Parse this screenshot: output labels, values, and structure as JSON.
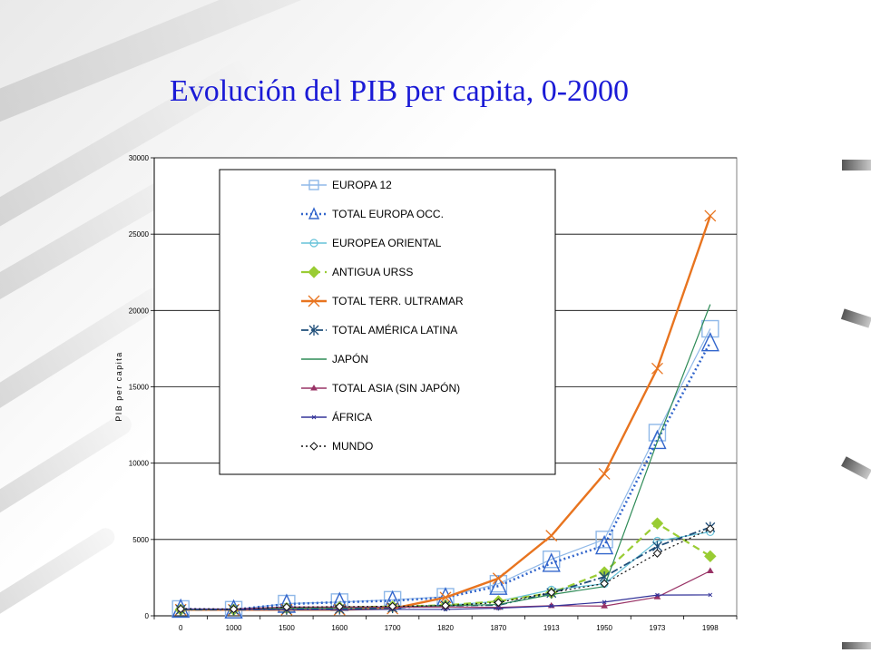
{
  "slide": {
    "title": "Evolución del PIB per capita, 0-2000"
  },
  "chart_data": {
    "type": "line",
    "title": "",
    "xlabel": "",
    "ylabel": "PIB per capita",
    "ylim": [
      0,
      30000
    ],
    "yticks": [
      0,
      5000,
      10000,
      15000,
      20000,
      25000,
      30000
    ],
    "categories": [
      "0",
      "1000",
      "1500",
      "1600",
      "1700",
      "1820",
      "1870",
      "1913",
      "1950",
      "1973",
      "1998"
    ],
    "grid": "horizontal major gridlines",
    "legend_position": "upper-left inside plot",
    "series": [
      {
        "name": "EUROPA 12",
        "color": "#8fb8e8",
        "marker": "square",
        "dash": "solid",
        "values": [
          450,
          400,
          800,
          900,
          1050,
          1250,
          2100,
          3700,
          5000,
          12000,
          18800
        ]
      },
      {
        "name": "TOTAL EUROPA OCC.",
        "color": "#3366cc",
        "marker": "triangle",
        "dash": "dotted",
        "values": [
          450,
          400,
          770,
          890,
          990,
          1200,
          1950,
          3450,
          4600,
          11500,
          17900
        ]
      },
      {
        "name": "EUROPEA ORIENTAL",
        "color": "#66c2d9",
        "marker": "circle",
        "dash": "solid",
        "values": [
          400,
          400,
          500,
          550,
          600,
          680,
          950,
          1700,
          2100,
          4900,
          5500
        ]
      },
      {
        "name": "ANTIGUA URSS",
        "color": "#99cc33",
        "marker": "diamond",
        "dash": "dashed",
        "values": [
          400,
          400,
          500,
          550,
          610,
          690,
          950,
          1500,
          2850,
          6050,
          3900
        ]
      },
      {
        "name": "TOTAL TERR. ULTRAMAR",
        "color": "#e8741f",
        "marker": "x",
        "dash": "solid",
        "values": [
          400,
          400,
          400,
          400,
          470,
          1200,
          2450,
          5250,
          9300,
          16200,
          26200
        ]
      },
      {
        "name": "TOTAL AMÉRICA LATINA",
        "color": "#1f4e79",
        "marker": "star",
        "dash": "dashdot",
        "values": [
          400,
          400,
          420,
          440,
          530,
          670,
          700,
          1500,
          2550,
          4550,
          5800
        ]
      },
      {
        "name": "JAPÓN",
        "color": "#2e8b57",
        "marker": "none",
        "dash": "solid",
        "values": [
          400,
          430,
          500,
          520,
          570,
          670,
          740,
          1390,
          1920,
          11400,
          20400
        ]
      },
      {
        "name": "TOTAL ASIA (SIN JAPÓN)",
        "color": "#993366",
        "marker": "triangle-small",
        "dash": "solid",
        "values": [
          450,
          450,
          570,
          570,
          570,
          580,
          550,
          660,
          640,
          1230,
          2940
        ]
      },
      {
        "name": "ÁFRICA",
        "color": "#333399",
        "marker": "x-small",
        "dash": "solid",
        "values": [
          430,
          430,
          400,
          400,
          420,
          420,
          500,
          640,
          900,
          1360,
          1370
        ]
      },
      {
        "name": "MUNDO",
        "color": "#111111",
        "marker": "open-diamond",
        "dash": "dotted",
        "values": [
          450,
          440,
          570,
          600,
          620,
          670,
          870,
          1530,
          2110,
          4090,
          5700
        ]
      }
    ]
  }
}
